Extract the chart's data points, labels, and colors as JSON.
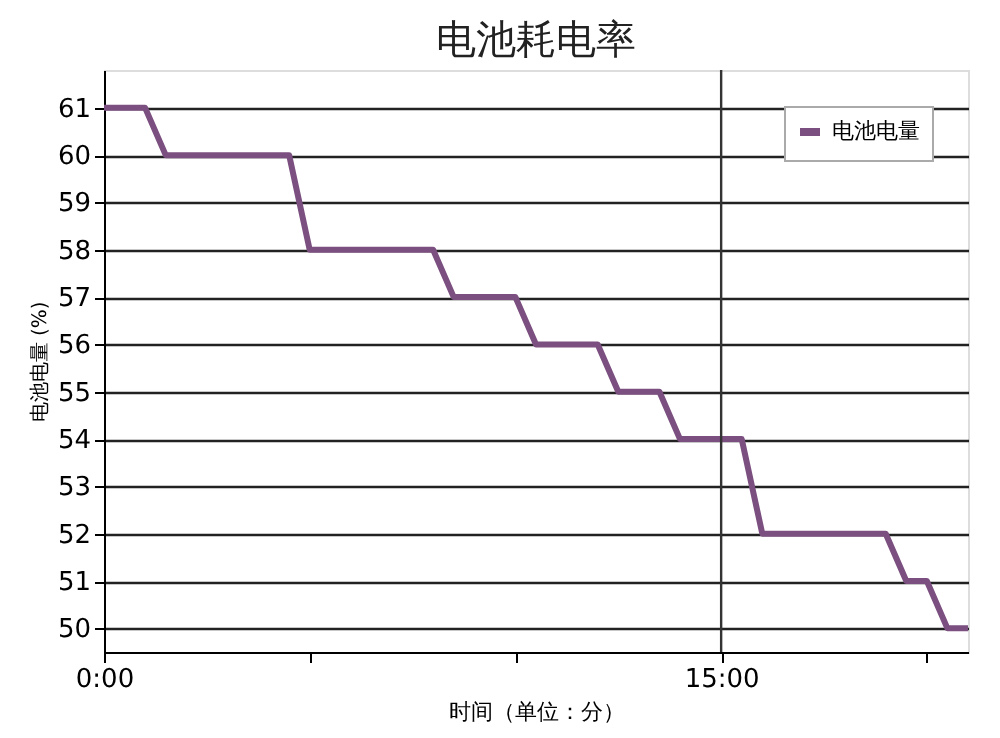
{
  "chart_data": {
    "type": "line",
    "title": "电池耗电率",
    "xlabel": "时间（单位：分）",
    "ylabel": "电池电量 (%)",
    "series": [
      {
        "name": "电池电量",
        "color": "#7b4f7f",
        "x": [
          0,
          1,
          1.5,
          4.5,
          5,
          8,
          8.5,
          10,
          10.5,
          12,
          12.5,
          13.5,
          14,
          15.5,
          16,
          19,
          19.5,
          20,
          20.5,
          21
        ],
        "values": [
          61,
          61,
          60,
          60,
          58,
          58,
          57,
          57,
          56,
          56,
          55,
          55,
          54,
          54,
          52,
          52,
          51,
          51,
          50,
          50
        ]
      }
    ],
    "xlim": [
      0,
      21
    ],
    "xticks": [
      {
        "value": 0,
        "label": "0:00"
      },
      {
        "value": 5,
        "label": null
      },
      {
        "value": 10,
        "label": null
      },
      {
        "value": 15,
        "label": "15:00"
      },
      {
        "value": 20,
        "label": null
      }
    ],
    "ylim": [
      49.5,
      61.8
    ],
    "yticks": [
      50,
      51,
      52,
      53,
      54,
      55,
      56,
      57,
      58,
      59,
      60,
      61
    ],
    "ref_lines": [
      {
        "axis": "x",
        "value": 15,
        "color": "#333333"
      }
    ],
    "grid": "y",
    "legend": "top right",
    "marker": "none",
    "line_style": "solid"
  }
}
